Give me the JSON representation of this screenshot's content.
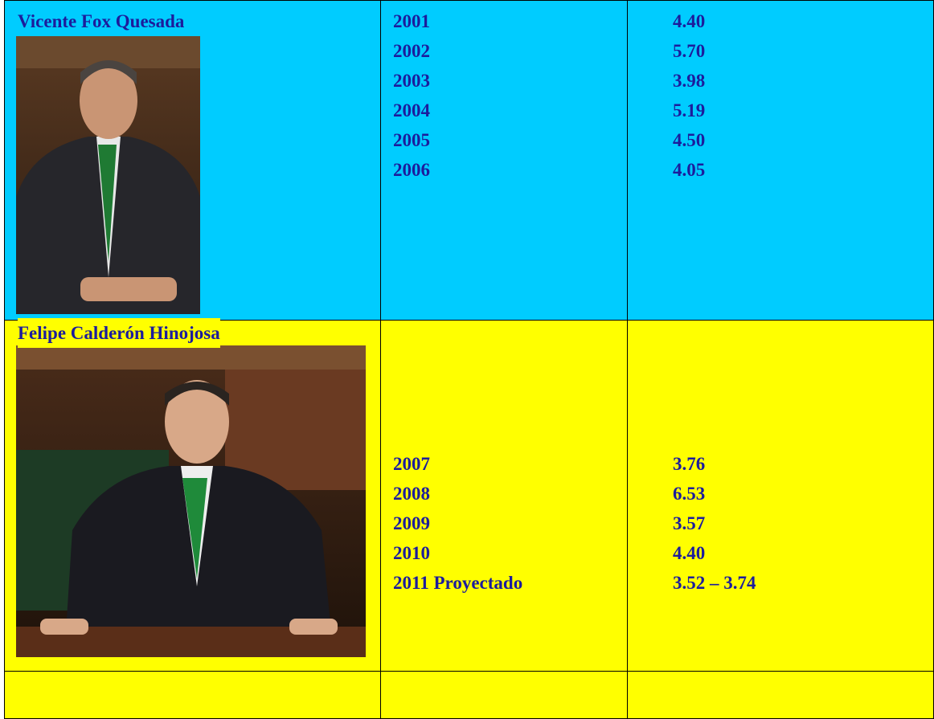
{
  "table": {
    "rows": [
      {
        "name": "Vicente Fox Quesada",
        "years": [
          "2001",
          "2002",
          "2003",
          "2004",
          "2005",
          "2006"
        ],
        "values": [
          "4.40",
          "5.70",
          "3.98",
          "5.19",
          "4.50",
          "4.05"
        ]
      },
      {
        "name": "Felipe Calderón Hinojosa",
        "years": [
          "2007",
          "2008",
          "2009",
          "2010",
          "2011 Proyectado"
        ],
        "values": [
          "3.76",
          "6.53",
          "3.57",
          "4.40",
          "3.52 – 3.74"
        ]
      }
    ]
  }
}
